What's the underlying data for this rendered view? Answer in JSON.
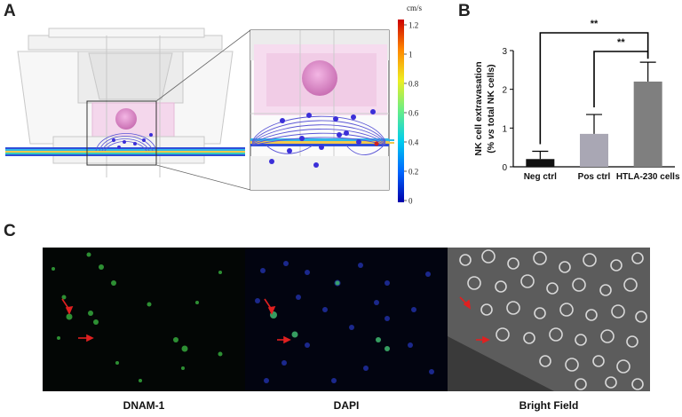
{
  "panels": {
    "a": "A",
    "b": "B",
    "c": "C"
  },
  "colorbar": {
    "unit": "cm/s",
    "ticks": [
      "1.2",
      "1",
      "0.8",
      "0.6",
      "0.4",
      "0.2",
      "0"
    ],
    "colors": [
      "#0000aa",
      "#0066ff",
      "#00ccee",
      "#66ee88",
      "#eeee22",
      "#ff8800",
      "#cc0000"
    ]
  },
  "chart_data": {
    "type": "bar",
    "title": "",
    "xlabel": "",
    "ylabel_line1": "NK cell extravasation",
    "ylabel_line2_parts": [
      "(% ",
      "vs",
      " total NK cells)"
    ],
    "categories": [
      "Neg ctrl",
      "Pos ctrl",
      "HTLA-230 cells"
    ],
    "values": [
      0.2,
      0.85,
      2.2
    ],
    "errors": [
      0.2,
      0.5,
      0.5
    ],
    "bar_colors": [
      "#111111",
      "#a9a7b4",
      "#7f7f7f"
    ],
    "ylim": [
      0,
      3
    ],
    "yticks": [
      "0",
      "1",
      "2",
      "3"
    ],
    "significance": [
      {
        "from": 0,
        "to": 2,
        "label": "**"
      },
      {
        "from": 1,
        "to": 2,
        "label": "**"
      }
    ]
  },
  "microscopy": {
    "labels": [
      "DNAM-1",
      "DAPI",
      "Bright Field"
    ]
  }
}
